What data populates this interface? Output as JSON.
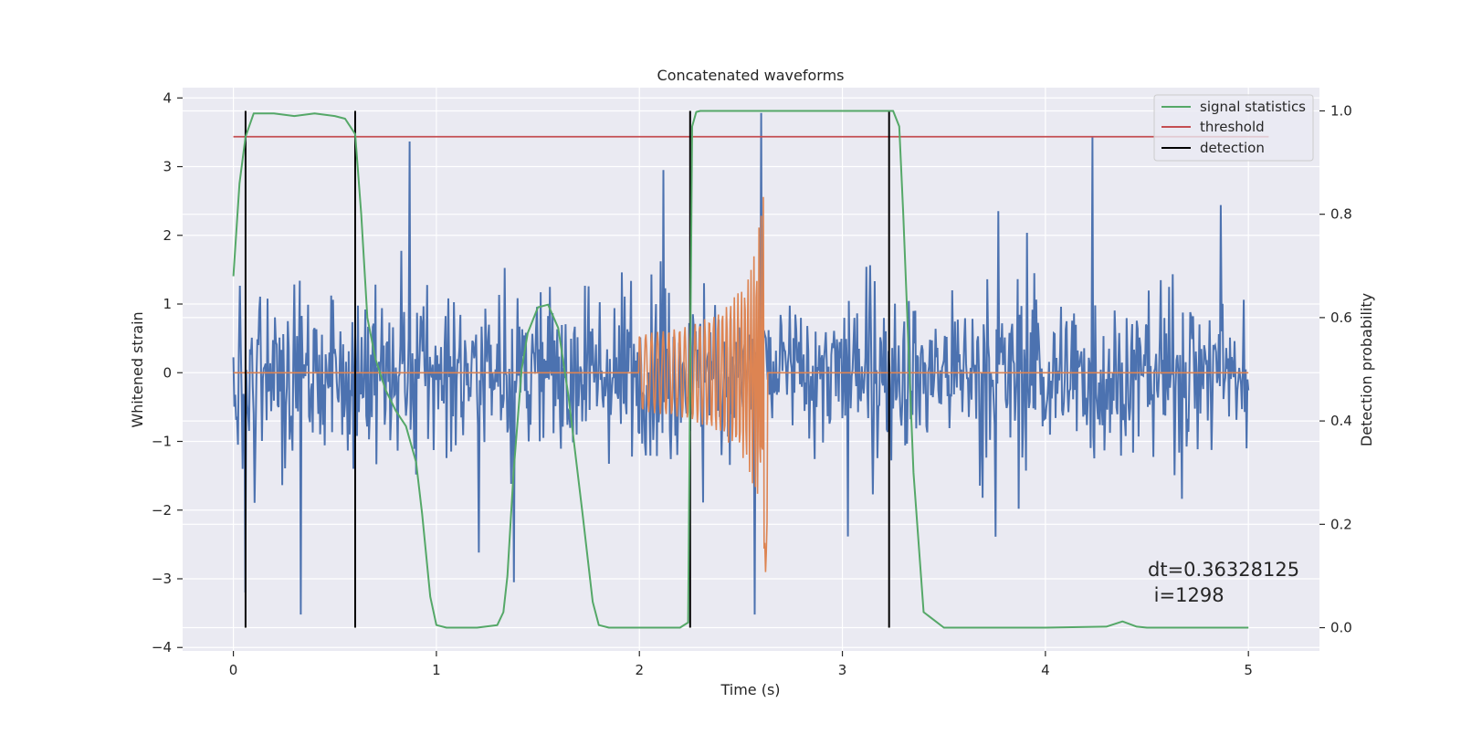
{
  "chart_data": {
    "type": "line",
    "title": "Concatenated waveforms",
    "xlabel": "Time (s)",
    "ylabel": "Whitened strain",
    "y2label": "Detection probability",
    "xlim": [
      -0.25,
      5.35
    ],
    "ylim": [
      -4.05,
      4.15
    ],
    "y2lim": [
      -0.045,
      1.045
    ],
    "xticks": [
      "0",
      "1",
      "2",
      "3",
      "4",
      "5"
    ],
    "yticks": [
      "4",
      "3",
      "2",
      "1",
      "0",
      "−1",
      "−2",
      "−3",
      "−4"
    ],
    "y2ticks": [
      "1.0",
      "0.8",
      "0.6",
      "0.4",
      "0.2",
      "0.0"
    ],
    "grid": true,
    "legend_position": "top-right",
    "legend": [
      "signal statistics",
      "threshold",
      "detection"
    ],
    "series": [
      {
        "name": "whitened strain (noise)",
        "color": "#4c72b0",
        "axis": "left",
        "x_range": [
          0,
          5
        ],
        "amplitude_envelope": {
          "typical_abs": 0.7,
          "max": 3.8,
          "min": -3.6
        },
        "peaks": [
          [
            0.33,
            -3.52
          ],
          [
            2.6,
            3.78
          ],
          [
            2.57,
            -3.52
          ],
          [
            4.23,
            3.43
          ],
          [
            0.06,
            -3.2
          ],
          [
            1.38,
            -3.05
          ]
        ]
      },
      {
        "name": "injected waveform",
        "color": "#dd8452",
        "axis": "left",
        "x": [
          2.0,
          2.05,
          2.1,
          2.2,
          2.3,
          2.4,
          2.5,
          2.55,
          2.6,
          2.62,
          2.63
        ],
        "envelope": [
          0.55,
          0.58,
          0.6,
          0.65,
          0.75,
          0.9,
          1.2,
          1.5,
          2.3,
          3.0,
          0.0
        ],
        "min_value": -2.97
      },
      {
        "name": "signal statistics",
        "color": "#55a868",
        "axis": "right",
        "x": [
          0.0,
          0.03,
          0.06,
          0.1,
          0.15,
          0.2,
          0.3,
          0.4,
          0.5,
          0.55,
          0.6,
          0.63,
          0.66,
          0.7,
          0.75,
          0.8,
          0.85,
          0.9,
          0.93,
          0.97,
          1.0,
          1.05,
          1.2,
          1.3,
          1.33,
          1.35,
          1.38,
          1.42,
          1.45,
          1.5,
          1.55,
          1.6,
          1.65,
          1.72,
          1.77,
          1.8,
          1.85,
          2.0,
          2.2,
          2.24,
          2.26,
          2.28,
          2.3,
          2.5,
          3.0,
          3.2,
          3.25,
          3.28,
          3.3,
          3.33,
          3.35,
          3.4,
          3.5,
          4.0,
          4.3,
          4.38,
          4.45,
          4.5,
          4.75,
          5.0
        ],
        "values": [
          0.68,
          0.86,
          0.95,
          0.995,
          0.995,
          0.995,
          0.99,
          0.995,
          0.99,
          0.985,
          0.955,
          0.8,
          0.6,
          0.52,
          0.46,
          0.42,
          0.39,
          0.32,
          0.22,
          0.06,
          0.005,
          0.0,
          0.0,
          0.005,
          0.03,
          0.1,
          0.3,
          0.5,
          0.57,
          0.62,
          0.625,
          0.58,
          0.45,
          0.22,
          0.05,
          0.005,
          0.0,
          0.0,
          0.0,
          0.01,
          0.97,
          0.998,
          1.0,
          1.0,
          1.0,
          1.0,
          1.0,
          0.97,
          0.8,
          0.5,
          0.3,
          0.03,
          0.0,
          0.0,
          0.002,
          0.012,
          0.002,
          0.0,
          0.0,
          0.0
        ]
      },
      {
        "name": "threshold",
        "color": "#c44e52",
        "axis": "right",
        "x": [
          0,
          5.1
        ],
        "values": [
          0.95,
          0.95
        ]
      }
    ],
    "detections": {
      "name": "detection",
      "color": "#000000",
      "axis": "right",
      "x": [
        0.06,
        0.6,
        2.25,
        3.23
      ],
      "y_range": [
        0.0,
        1.0
      ]
    },
    "annotation": {
      "line1": "dt=0.36328125",
      "line2": " i=1298",
      "x": 4.5,
      "y": -3.4
    }
  }
}
